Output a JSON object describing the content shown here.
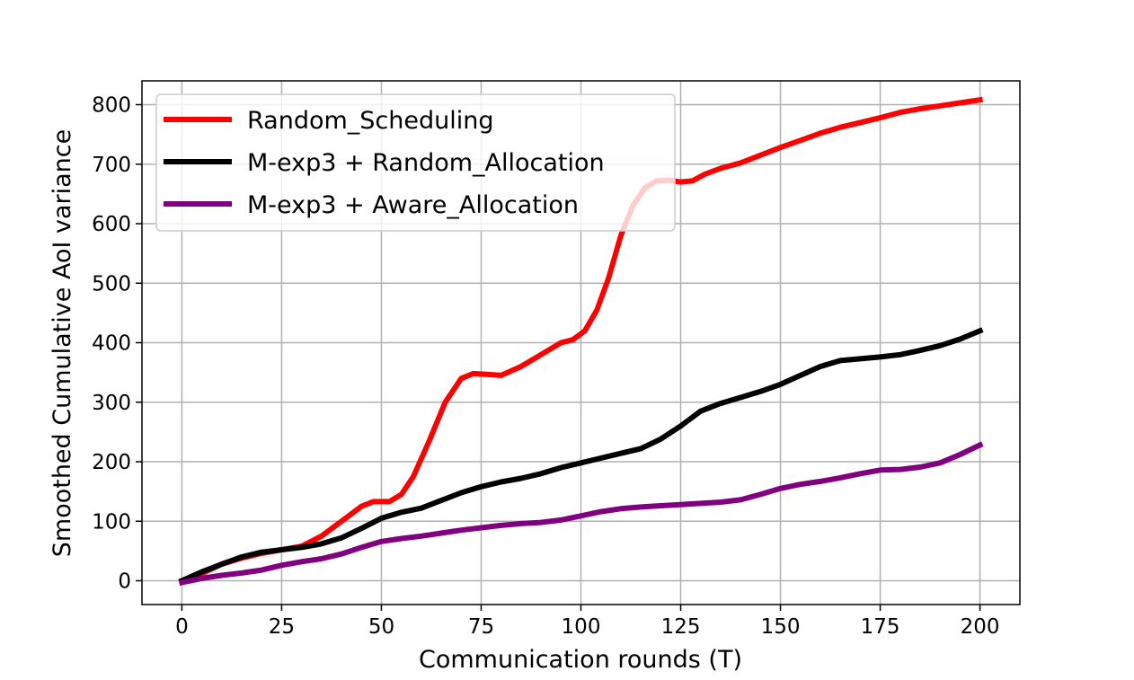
{
  "chart_data": {
    "type": "line",
    "title": "",
    "xlabel": "Communication rounds (T)",
    "ylabel": "Smoothed Cumulative AoI variance",
    "xlim": [
      -10,
      210
    ],
    "ylim": [
      -40,
      840
    ],
    "xticks": [
      0,
      25,
      50,
      75,
      100,
      125,
      150,
      175,
      200
    ],
    "yticks": [
      0,
      100,
      200,
      300,
      400,
      500,
      600,
      700,
      800
    ],
    "grid": true,
    "legend_position": "top-left",
    "series": [
      {
        "name": "Random_Scheduling",
        "color": "#ff0000",
        "x": [
          0,
          5,
          10,
          15,
          20,
          25,
          30,
          35,
          40,
          45,
          48,
          52,
          55,
          58,
          62,
          66,
          70,
          73,
          76,
          80,
          85,
          90,
          95,
          98,
          101,
          104,
          107,
          110,
          113,
          116,
          119,
          122,
          125,
          128,
          131,
          135,
          140,
          145,
          150,
          155,
          160,
          165,
          170,
          175,
          180,
          185,
          190,
          195,
          200
        ],
        "y": [
          0,
          12,
          28,
          38,
          46,
          52,
          58,
          75,
          100,
          125,
          133,
          133,
          145,
          175,
          235,
          300,
          340,
          348,
          347,
          345,
          360,
          380,
          400,
          405,
          420,
          455,
          510,
          580,
          630,
          660,
          672,
          673,
          670,
          672,
          683,
          693,
          702,
          715,
          728,
          740,
          752,
          762,
          770,
          778,
          787,
          793,
          798,
          803,
          808
        ]
      },
      {
        "name": "M-exp3 + Random_Allocation",
        "color": "#000000",
        "x": [
          0,
          5,
          10,
          15,
          20,
          25,
          30,
          35,
          40,
          45,
          50,
          55,
          60,
          65,
          70,
          75,
          80,
          85,
          90,
          95,
          100,
          105,
          110,
          115,
          120,
          125,
          130,
          135,
          140,
          145,
          150,
          155,
          160,
          165,
          170,
          175,
          180,
          185,
          190,
          195,
          200
        ],
        "y": [
          0,
          15,
          28,
          40,
          48,
          52,
          56,
          62,
          72,
          88,
          105,
          115,
          122,
          135,
          148,
          158,
          166,
          172,
          180,
          190,
          198,
          206,
          214,
          222,
          238,
          260,
          285,
          298,
          308,
          318,
          330,
          345,
          360,
          370,
          373,
          376,
          380,
          387,
          395,
          406,
          420
        ]
      },
      {
        "name": "M-exp3 + Aware_Allocation",
        "color": "#800080",
        "x": [
          0,
          5,
          10,
          15,
          20,
          25,
          30,
          35,
          40,
          45,
          50,
          55,
          60,
          65,
          70,
          75,
          80,
          85,
          90,
          95,
          100,
          105,
          110,
          115,
          120,
          125,
          130,
          135,
          140,
          145,
          150,
          155,
          160,
          165,
          170,
          175,
          180,
          185,
          190,
          195,
          200
        ],
        "y": [
          -3,
          4,
          9,
          13,
          18,
          26,
          32,
          37,
          45,
          56,
          66,
          71,
          75,
          80,
          85,
          89,
          93,
          96,
          98,
          102,
          109,
          116,
          121,
          124,
          126,
          128,
          130,
          132,
          136,
          145,
          155,
          162,
          167,
          173,
          180,
          186,
          187,
          191,
          198,
          212,
          228
        ]
      }
    ]
  }
}
